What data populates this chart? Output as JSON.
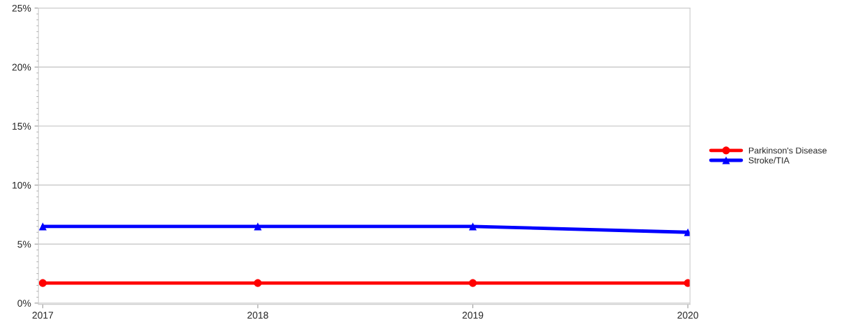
{
  "chart_data": {
    "type": "line",
    "x": [
      2017,
      2018,
      2019,
      2020
    ],
    "series": [
      {
        "name": "Parkinson's Disease",
        "color": "#ff0000",
        "marker": "circle",
        "values": [
          1.7,
          1.7,
          1.7,
          1.7
        ]
      },
      {
        "name": "Stroke/TIA",
        "color": "#0000ff",
        "marker": "triangle",
        "values": [
          6.5,
          6.5,
          6.5,
          6.0
        ]
      }
    ],
    "xlim": [
      2016.98,
      2020.01
    ],
    "xticks": [
      2017,
      2018,
      2019,
      2020
    ],
    "ylim": [
      -0.1,
      25
    ],
    "yticks": [
      {
        "value": 0,
        "label": "0%"
      },
      {
        "value": 5,
        "label": "5%"
      },
      {
        "value": 10,
        "label": "10%"
      },
      {
        "value": 15,
        "label": "15%"
      },
      {
        "value": 20,
        "label": "20%"
      },
      {
        "value": 25,
        "label": "25%"
      }
    ],
    "grid": "y",
    "legend": "right",
    "line_style": "solid"
  }
}
